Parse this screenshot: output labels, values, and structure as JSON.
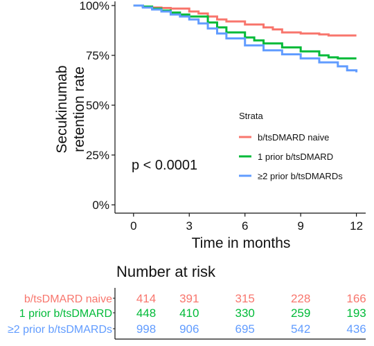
{
  "chart_data": {
    "type": "line",
    "subtype": "kaplan-meier",
    "ylabel_line1": "Secukinumab",
    "ylabel_line2": "retention rate",
    "xlabel": "Time in months",
    "xlim": [
      -1,
      12.5
    ],
    "ylim": [
      0,
      100
    ],
    "xticks": [
      0,
      3,
      6,
      9,
      12
    ],
    "yticks": [
      0,
      25,
      50,
      75,
      100
    ],
    "ytick_labels": [
      "0%",
      "25%",
      "50%",
      "75%",
      "100%"
    ],
    "grid": false,
    "annotation": "p < 0.0001",
    "legend": {
      "title": "Strata",
      "position": "right-center"
    },
    "series": [
      {
        "name": "b/tsDMARD naive",
        "color": "#F8766D",
        "x": [
          0,
          0.5,
          1,
          1.5,
          2,
          3,
          3.5,
          4,
          4.5,
          5,
          6,
          7,
          7.5,
          8,
          9,
          10,
          10.5,
          11,
          12
        ],
        "y": [
          100,
          99.5,
          99,
          98.8,
          98.5,
          97,
          96,
          94.5,
          93,
          92,
          90.5,
          89,
          88,
          86.5,
          86,
          85.5,
          85,
          85,
          85
        ]
      },
      {
        "name": "1 prior b/tsDMARD",
        "color": "#00BA38",
        "x": [
          0,
          0.5,
          1,
          1.5,
          2,
          2.5,
          3,
          4,
          4.5,
          5,
          6,
          6.5,
          7,
          8,
          9,
          10,
          10.5,
          11,
          12
        ],
        "y": [
          100,
          99.5,
          98.5,
          97.5,
          96.5,
          95.5,
          94.5,
          91.5,
          89,
          86.5,
          84,
          82.5,
          81,
          79,
          77,
          75,
          74,
          73.5,
          73.5
        ]
      },
      {
        "name": "≥2 prior b/tsDMARDs",
        "color": "#619CFF",
        "x": [
          0,
          0.5,
          1,
          1.5,
          2,
          2.5,
          3,
          3.5,
          4,
          4.5,
          5,
          6,
          7,
          8,
          9,
          10,
          11,
          11.5,
          12
        ],
        "y": [
          100,
          99,
          98,
          97,
          95.5,
          94.5,
          93,
          91,
          88.5,
          86,
          83.5,
          80,
          77.5,
          75.5,
          73.5,
          71.5,
          69.5,
          67.5,
          66.5
        ]
      }
    ]
  },
  "risk_table": {
    "title": "Number at risk",
    "times": [
      0,
      3,
      6,
      9,
      12
    ],
    "rows": [
      {
        "label": "b/tsDMARD naive",
        "color": "#F8766D",
        "values": [
          "414",
          "391",
          "315",
          "228",
          "166"
        ]
      },
      {
        "label": "1 prior b/tsDMARD",
        "color": "#00BA38",
        "values": [
          "448",
          "410",
          "330",
          "259",
          "193"
        ]
      },
      {
        "label": "≥2 prior b/tsDMARDs",
        "color": "#619CFF",
        "values": [
          "998",
          "906",
          "695",
          "542",
          "436"
        ]
      }
    ]
  }
}
